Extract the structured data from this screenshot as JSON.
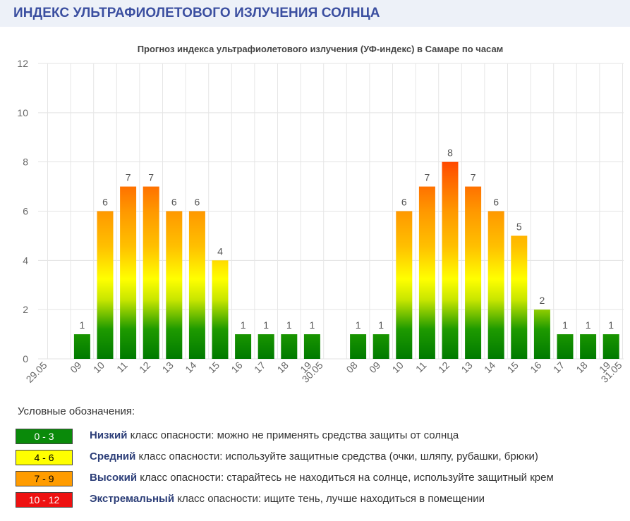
{
  "page_title": "ИНДЕКС УЛЬТРАФИОЛЕТОВОГО ИЗЛУЧЕНИЯ СОЛНЦА",
  "chart_data": {
    "type": "bar",
    "title": "Прогноз индекса ультрафиолетового излучения (УФ-индекс) в Самаре по часам",
    "xlabel": "",
    "ylabel": "",
    "ylim": [
      0,
      12
    ],
    "yticks": [
      "0",
      "2",
      "4",
      "6",
      "8",
      "10",
      "12"
    ],
    "grid": true,
    "categories": [
      "29.05",
      "09",
      "10",
      "11",
      "12",
      "13",
      "14",
      "15",
      "16",
      "17",
      "18",
      "19",
      "30.05",
      "08",
      "09",
      "10",
      "11",
      "12",
      "13",
      "14",
      "15",
      "16",
      "17",
      "18",
      "19",
      "31.05"
    ],
    "values": [
      null,
      1,
      6,
      7,
      7,
      6,
      6,
      4,
      1,
      1,
      1,
      1,
      null,
      1,
      1,
      6,
      7,
      8,
      7,
      6,
      5,
      2,
      1,
      1,
      1,
      null
    ],
    "data_labels": [
      "",
      "1",
      "6",
      "7",
      "7",
      "6",
      "6",
      "4",
      "1",
      "1",
      "1",
      "1",
      "",
      "1",
      "1",
      "6",
      "7",
      "8",
      "7",
      "6",
      "5",
      "2",
      "1",
      "1",
      "1",
      ""
    ],
    "scale_colors": [
      "#008000",
      "#ffff00",
      "#ff8c00",
      "#ff0000"
    ]
  },
  "legend": {
    "heading": "Условные обозначения:",
    "items": [
      {
        "range": "0 - 3",
        "level": "Низкий",
        "text": " класс опасности: можно не применять средства защиты от солнца",
        "color": "#0a8a0a",
        "text_color": "#ffffff"
      },
      {
        "range": "4 - 6",
        "level": "Средний",
        "text": " класс опасности: используйте защитные средства (очки, шляпу, рубашки, брюки)",
        "color": "#ffff00",
        "text_color": "#000000"
      },
      {
        "range": "7 - 9",
        "level": "Высокий",
        "text": " класс опасности: старайтесь не находиться на солнце, используйте защитный крем",
        "color": "#ff9c00",
        "text_color": "#000000"
      },
      {
        "range": "10 - 12",
        "level": "Экстремальный",
        "text": " класс опасности: ищите тень, лучше находиться в помещении",
        "color": "#ee1111",
        "text_color": "#ffffff"
      }
    ]
  }
}
